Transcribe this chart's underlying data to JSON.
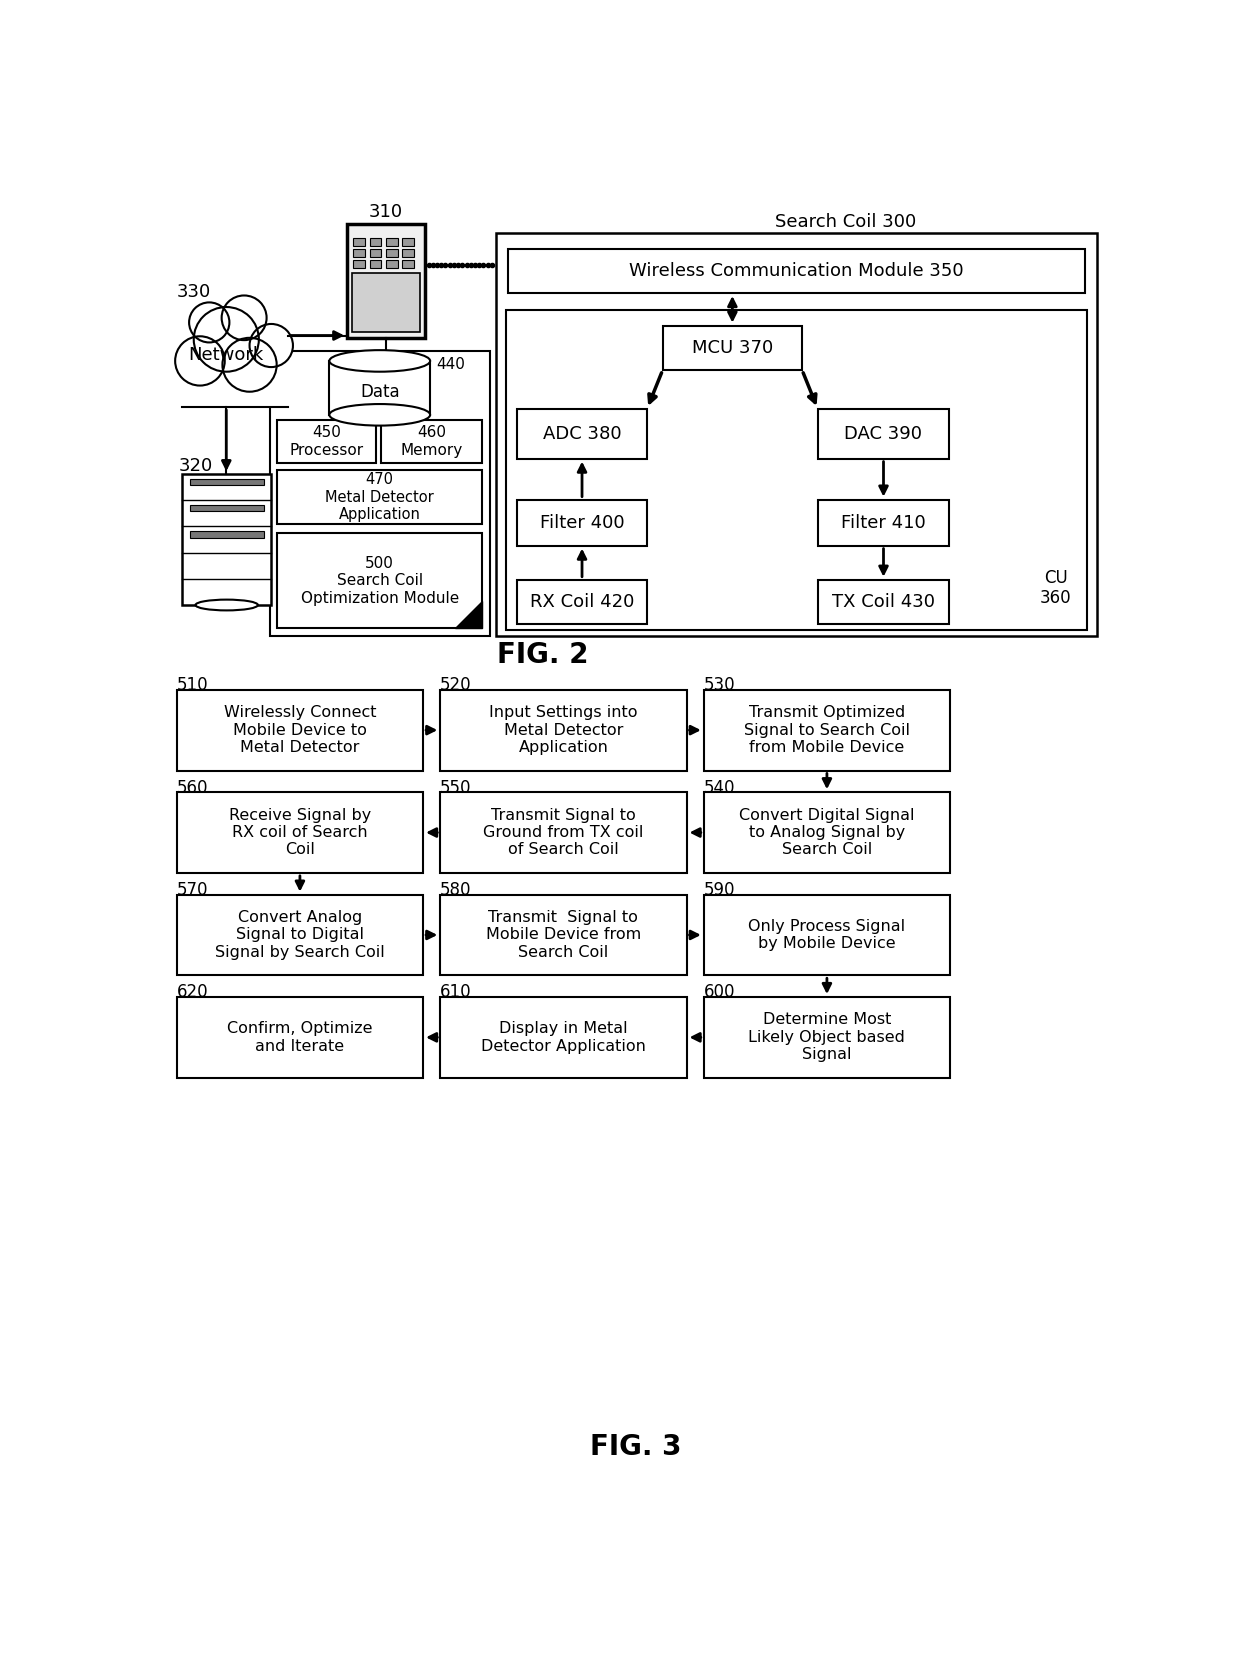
{
  "bg_color": "#ffffff",
  "fig2_title": "FIG. 2",
  "fig3_title": "FIG. 3",
  "search_coil_label": "Search Coil 300",
  "wcm_label": "Wireless Communication Module 350",
  "mcu_label": "MCU 370",
  "cu_label": "CU\n360",
  "adc_label": "ADC 380",
  "dac_label": "DAC 390",
  "filter400_label": "Filter 400",
  "filter410_label": "Filter 410",
  "rx_label": "RX Coil 420",
  "tx_label": "TX Coil 430",
  "network_label": "Network",
  "network_num": "330",
  "server_num": "320",
  "mobile_num": "310",
  "data_label": "Data",
  "data_num": "440",
  "proc_label": "Processor",
  "proc_num": "450",
  "mem_label": "Memory",
  "mem_num": "460",
  "app_label": "Metal Detector\nApplication",
  "app_num": "470",
  "opt_label": "Search Coil\nOptimization Module",
  "opt_num": "500",
  "flow_nodes": [
    {
      "id": "510",
      "text": "Wirelessly Connect\nMobile Device to\nMetal Detector",
      "col": 0,
      "row": 0
    },
    {
      "id": "520",
      "text": "Input Settings into\nMetal Detector\nApplication",
      "col": 1,
      "row": 0
    },
    {
      "id": "530",
      "text": "Transmit Optimized\nSignal to Search Coil\nfrom Mobile Device",
      "col": 2,
      "row": 0
    },
    {
      "id": "540",
      "text": "Convert Digital Signal\nto Analog Signal by\nSearch Coil",
      "col": 2,
      "row": 1
    },
    {
      "id": "550",
      "text": "Transmit Signal to\nGround from TX coil\nof Search Coil",
      "col": 1,
      "row": 1
    },
    {
      "id": "560",
      "text": "Receive Signal by\nRX coil of Search\nCoil",
      "col": 0,
      "row": 1
    },
    {
      "id": "570",
      "text": "Convert Analog\nSignal to Digital\nSignal by Search Coil",
      "col": 0,
      "row": 2
    },
    {
      "id": "580",
      "text": "Transmit  Signal to\nMobile Device from\nSearch Coil",
      "col": 1,
      "row": 2
    },
    {
      "id": "590",
      "text": "Only Process Signal\nby Mobile Device",
      "col": 2,
      "row": 2
    },
    {
      "id": "600",
      "text": "Determine Most\nLikely Object based\nSignal",
      "col": 2,
      "row": 3
    },
    {
      "id": "610",
      "text": "Display in Metal\nDetector Application",
      "col": 1,
      "row": 3
    },
    {
      "id": "620",
      "text": "Confirm, Optimize\nand Iterate",
      "col": 0,
      "row": 3
    }
  ]
}
